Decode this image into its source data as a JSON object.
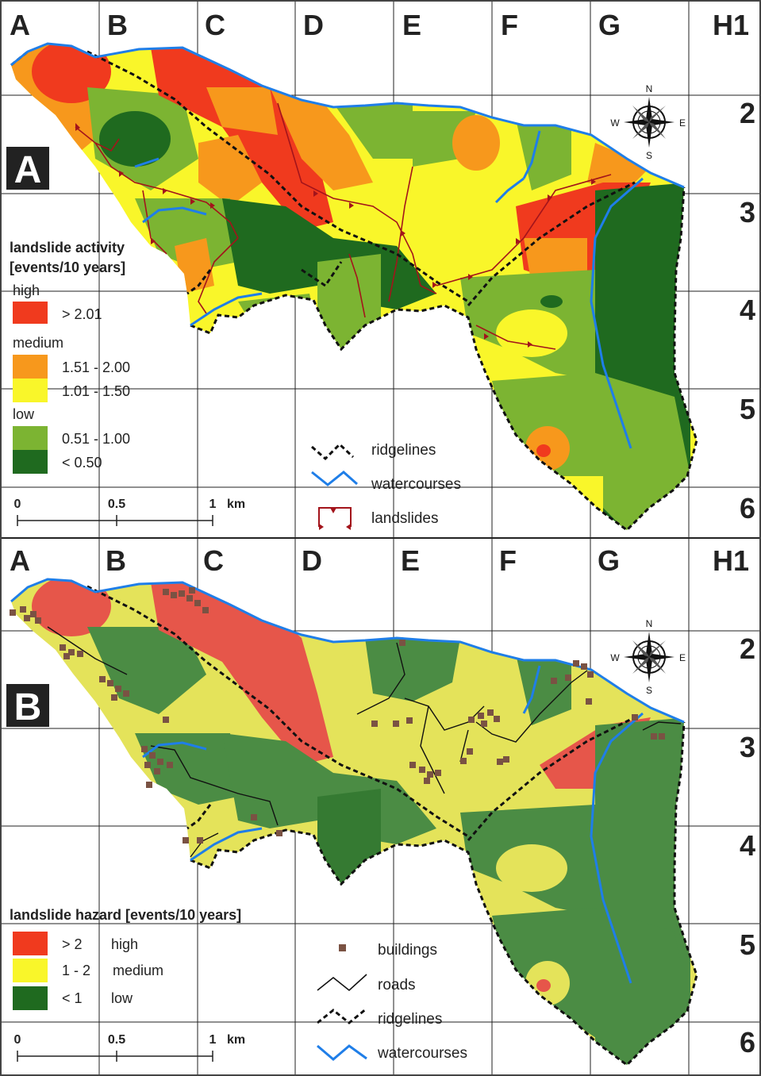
{
  "grid": {
    "columns": [
      "A",
      "B",
      "C",
      "D",
      "E",
      "F",
      "G",
      "H1"
    ],
    "rows": [
      "2",
      "3",
      "4",
      "5",
      "6"
    ]
  },
  "colors": {
    "red": "#f03a1e",
    "orange": "#f7981c",
    "yellow": "#f9f62a",
    "lightgreen": "#7cb432",
    "darkgreen": "#1f6a1f",
    "water": "#1f7ee8",
    "landslide": "#a3141b",
    "building": "#7a5243",
    "hazard_red": "#e6564a",
    "hazard_yellow": "#e4e35a",
    "hazard_green": "#4b8c44"
  },
  "panelA": {
    "badge": "A",
    "legend": {
      "title_line1": "landslide activity",
      "title_line2": "[events/10 years]",
      "groups": [
        {
          "label": "high",
          "items": [
            {
              "color": "red",
              "label": "> 2.01"
            }
          ]
        },
        {
          "label": "medium",
          "items": [
            {
              "color": "orange",
              "label": "1.51 - 2.00"
            },
            {
              "color": "yellow",
              "label": "1.01 - 1.50"
            }
          ]
        },
        {
          "label": "low",
          "items": [
            {
              "color": "lightgreen",
              "label": "0.51 - 1.00"
            },
            {
              "color": "darkgreen",
              "label": "< 0.50"
            }
          ]
        }
      ],
      "symbols": [
        "ridgelines",
        "watercourses",
        "landslides"
      ]
    },
    "scale": {
      "ticks": [
        "0",
        "0.5",
        "1"
      ],
      "unit": "km"
    }
  },
  "panelB": {
    "badge": "B",
    "legend": {
      "title": "landslide hazard [events/10 years]",
      "items": [
        {
          "color": "red",
          "value": "> 2",
          "label": "high"
        },
        {
          "color": "yellow",
          "value": "1 - 2",
          "label": "medium"
        },
        {
          "color": "darkgreen",
          "value": "< 1",
          "label": "low"
        }
      ],
      "symbols": [
        "buildings",
        "roads",
        "ridgelines",
        "watercourses"
      ]
    },
    "scale": {
      "ticks": [
        "0",
        "0.5",
        "1"
      ],
      "unit": "km"
    }
  },
  "compass": {
    "n": "N",
    "s": "S",
    "e": "E",
    "w": "W"
  }
}
